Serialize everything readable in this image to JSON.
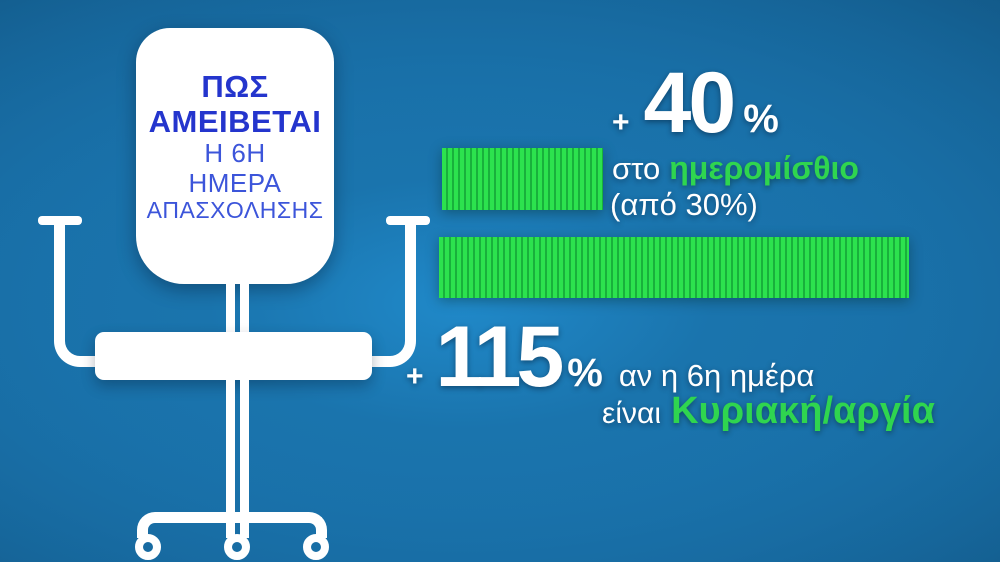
{
  "title": {
    "line1": "ΠΩΣ",
    "line2": "ΑΜΕΙΒΕΤΑΙ",
    "line3": "Η 6Η",
    "line4": "ΗΜΕΡΑ",
    "line5": "ΑΠΑΣΧΟΛΗΣΗΣ",
    "title_color": "#2435cd",
    "subtitle_color": "#3c55da"
  },
  "chart_data": {
    "type": "bar",
    "orientation": "horizontal",
    "title": "ΠΩΣ ΑΜΕΙΒΕΤΑΙ Η 6Η ΗΜΕΡΑ ΑΠΑΣΧΟΛΗΣΗΣ",
    "categories": [
      "ημερομίσθιο",
      "Κυριακή/αργία"
    ],
    "values": [
      40,
      115
    ],
    "unit": "%",
    "grid": false,
    "legend": false,
    "bar_color": "#2ce24e",
    "bar_stripe_color": "#19b03c",
    "highlight_text_color": "#2fd54f",
    "bars": [
      {
        "plus": "+",
        "value": "40",
        "percent": "%",
        "pre": "στο",
        "highlight": "ημερομίσθιο",
        "note": "(από 30%)"
      },
      {
        "plus": "+",
        "value": "115",
        "percent": "%",
        "line1": "αν η 6η ημέρα",
        "pre": "είναι",
        "highlight": "Κυριακή/αργία"
      }
    ]
  },
  "background": {
    "center_color": "#2089c9",
    "edge_color": "#041a2b"
  }
}
